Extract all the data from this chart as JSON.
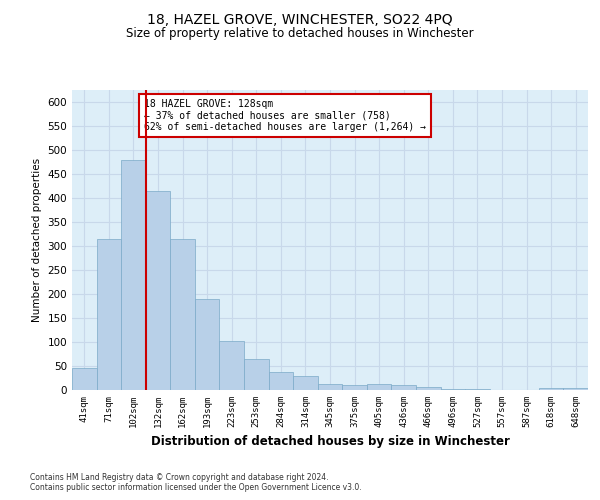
{
  "title": "18, HAZEL GROVE, WINCHESTER, SO22 4PQ",
  "subtitle": "Size of property relative to detached houses in Winchester",
  "xlabel": "Distribution of detached houses by size in Winchester",
  "ylabel": "Number of detached properties",
  "categories": [
    "41sqm",
    "71sqm",
    "102sqm",
    "132sqm",
    "162sqm",
    "193sqm",
    "223sqm",
    "253sqm",
    "284sqm",
    "314sqm",
    "345sqm",
    "375sqm",
    "405sqm",
    "436sqm",
    "466sqm",
    "496sqm",
    "527sqm",
    "557sqm",
    "587sqm",
    "618sqm",
    "648sqm"
  ],
  "values": [
    45,
    315,
    480,
    415,
    315,
    190,
    103,
    65,
    38,
    30,
    13,
    10,
    13,
    10,
    7,
    3,
    3,
    0,
    0,
    5,
    4
  ],
  "bar_color": "#b8d0e8",
  "bar_edge_color": "#7aaac8",
  "grid_color": "#c8d8ea",
  "background_color": "#ddeef8",
  "vline_color": "#cc0000",
  "annotation_text": "18 HAZEL GROVE: 128sqm\n← 37% of detached houses are smaller (758)\n62% of semi-detached houses are larger (1,264) →",
  "annotation_box_color": "#ffffff",
  "annotation_box_edge": "#cc0000",
  "footer1": "Contains HM Land Registry data © Crown copyright and database right 2024.",
  "footer2": "Contains public sector information licensed under the Open Government Licence v3.0.",
  "ylim": [
    0,
    625
  ],
  "yticks": [
    0,
    50,
    100,
    150,
    200,
    250,
    300,
    350,
    400,
    450,
    500,
    550,
    600
  ]
}
